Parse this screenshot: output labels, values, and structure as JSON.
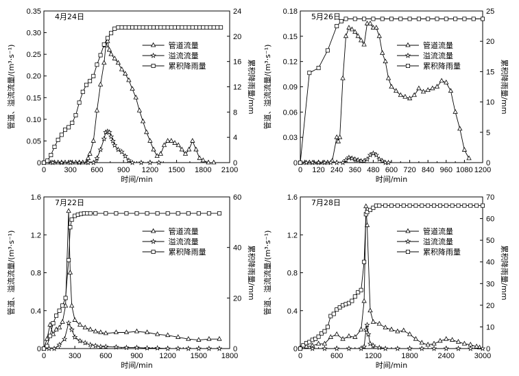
{
  "chart_data": [
    {
      "type": "line",
      "title": "4月24日",
      "xlabel": "时间/min",
      "ylabel": "管道、溢流流量/(m³·s⁻¹)",
      "y2label": "累积降雨量/mm",
      "xlim": [
        0,
        2100
      ],
      "ylim": [
        0,
        0.35
      ],
      "y2lim": [
        0,
        24
      ],
      "xticks": [
        "0",
        "300",
        "600",
        "900",
        "1200",
        "1500",
        "1800",
        "2100"
      ],
      "yticks": [
        "0",
        "0.05",
        "0.10",
        "0.15",
        "0.20",
        "0.25",
        "0.30",
        "0.35"
      ],
      "y2ticks": [
        "0",
        "4",
        "8",
        "12",
        "16",
        "20",
        "24"
      ],
      "legend": [
        "管道流量",
        "溢流流量",
        "累积降雨量"
      ],
      "series": [
        {
          "name": "管道流量",
          "marker": "triangle",
          "axis": "left",
          "x": [
            0,
            40,
            80,
            120,
            160,
            200,
            240,
            280,
            320,
            360,
            400,
            440,
            480,
            500,
            520,
            560,
            600,
            640,
            680,
            700,
            720,
            740,
            760,
            800,
            840,
            880,
            920,
            960,
            1000,
            1040,
            1080,
            1120,
            1160,
            1200,
            1240,
            1280,
            1320,
            1360,
            1400,
            1440,
            1480,
            1520,
            1560,
            1600,
            1640,
            1680,
            1720,
            1760,
            1800,
            1860,
            1920
          ],
          "y": [
            0,
            0,
            0,
            0,
            0,
            0,
            0,
            0,
            0,
            0,
            0,
            0,
            0,
            0.01,
            0.02,
            0.05,
            0.12,
            0.18,
            0.23,
            0.27,
            0.28,
            0.26,
            0.25,
            0.24,
            0.23,
            0.215,
            0.205,
            0.19,
            0.17,
            0.15,
            0.12,
            0.095,
            0.07,
            0.05,
            0.03,
            0.015,
            0.02,
            0.04,
            0.05,
            0.05,
            0.045,
            0.04,
            0.03,
            0.02,
            0.03,
            0.05,
            0.03,
            0.01,
            0.005,
            0,
            0
          ]
        },
        {
          "name": "溢流流量",
          "marker": "star",
          "axis": "left",
          "x": [
            0,
            100,
            200,
            300,
            400,
            500,
            560,
            600,
            640,
            680,
            700,
            720,
            740,
            760,
            780,
            800,
            840,
            880,
            920,
            960,
            1000,
            1100,
            1200,
            1300
          ],
          "y": [
            0,
            0,
            0,
            0,
            0,
            0,
            0,
            0.01,
            0.03,
            0.055,
            0.07,
            0.072,
            0.07,
            0.06,
            0.05,
            0.04,
            0.03,
            0.025,
            0.015,
            0.005,
            0,
            0,
            0,
            0
          ]
        },
        {
          "name": "累积降雨量",
          "marker": "square",
          "axis": "right",
          "x": [
            0,
            40,
            80,
            120,
            160,
            200,
            240,
            280,
            320,
            360,
            400,
            440,
            480,
            520,
            560,
            600,
            640,
            680,
            720,
            760,
            800,
            840,
            880,
            920,
            960,
            1000,
            1040,
            1080,
            1120,
            1160,
            1200,
            1240,
            1280,
            1320,
            1360,
            1400,
            1440,
            1480,
            1520,
            1560,
            1600,
            1640,
            1680,
            1720,
            1760,
            1800,
            1840,
            1880,
            1920,
            1960,
            2000
          ],
          "y": [
            0,
            0.3,
            1.2,
            2.5,
            3.6,
            4.4,
            5.2,
            5.6,
            6.3,
            7.5,
            9.5,
            11.2,
            12.3,
            12.9,
            13.7,
            15.5,
            17.0,
            18.7,
            19.7,
            20.5,
            21.2,
            21.4,
            21.4,
            21.4,
            21.4,
            21.4,
            21.4,
            21.4,
            21.4,
            21.4,
            21.4,
            21.4,
            21.4,
            21.4,
            21.4,
            21.4,
            21.4,
            21.4,
            21.4,
            21.4,
            21.4,
            21.4,
            21.4,
            21.4,
            21.4,
            21.4,
            21.4,
            21.4,
            21.4,
            21.4,
            21.4
          ]
        }
      ]
    },
    {
      "type": "line",
      "title": "5月26日",
      "xlabel": "时间/min",
      "ylabel": "管道、溢流流量/(m³·s⁻¹)",
      "y2label": "累积降雨量/mm",
      "xlim": [
        0,
        1200
      ],
      "ylim": [
        0,
        0.18
      ],
      "y2lim": [
        0,
        25
      ],
      "xticks": [
        "0",
        "120",
        "240",
        "360",
        "480",
        "600",
        "720",
        "840",
        "960",
        "1080",
        "1200"
      ],
      "yticks": [
        "0",
        "0.03",
        "0.06",
        "0.09",
        "0.12",
        "0.15",
        "0.18"
      ],
      "y2ticks": [
        "0",
        "5",
        "10",
        "15",
        "20",
        "25"
      ],
      "legend": [
        "管道流量",
        "溢流流量",
        "累积降雨量"
      ],
      "series": [
        {
          "name": "管道流量",
          "marker": "triangle",
          "axis": "left",
          "x": [
            0,
            30,
            60,
            90,
            120,
            150,
            180,
            210,
            240,
            250,
            260,
            280,
            300,
            320,
            340,
            360,
            380,
            400,
            420,
            440,
            460,
            480,
            500,
            520,
            540,
            560,
            580,
            600,
            630,
            660,
            690,
            720,
            750,
            780,
            810,
            840,
            870,
            900,
            930,
            960,
            990,
            1020,
            1050,
            1080,
            1110
          ],
          "y": [
            0,
            0,
            0,
            0,
            0,
            0,
            0,
            0.002,
            0.03,
            0.025,
            0.03,
            0.1,
            0.15,
            0.16,
            0.158,
            0.155,
            0.15,
            0.145,
            0.14,
            0.165,
            0.165,
            0.16,
            0.16,
            0.15,
            0.13,
            0.12,
            0.1,
            0.09,
            0.085,
            0.08,
            0.078,
            0.076,
            0.08,
            0.088,
            0.084,
            0.086,
            0.088,
            0.09,
            0.097,
            0.095,
            0.085,
            0.06,
            0.04,
            0.015,
            0.005
          ]
        },
        {
          "name": "溢流流量",
          "marker": "star",
          "axis": "left",
          "x": [
            0,
            40,
            80,
            120,
            160,
            200,
            240,
            280,
            300,
            320,
            340,
            360,
            380,
            400,
            420,
            440,
            460,
            480,
            500,
            520,
            540,
            560,
            580
          ],
          "y": [
            0,
            0,
            0,
            0,
            0,
            0,
            0,
            0,
            0.003,
            0.006,
            0.005,
            0.004,
            0.003,
            0.002,
            0.002,
            0.004,
            0.009,
            0.011,
            0.009,
            0.004,
            0.002,
            0,
            0
          ]
        },
        {
          "name": "累积降雨量",
          "marker": "square",
          "axis": "right",
          "x": [
            0,
            60,
            120,
            180,
            240,
            270,
            300,
            360,
            420,
            480,
            540,
            600,
            660,
            720,
            780,
            840,
            900,
            960,
            1020,
            1080,
            1140,
            1200
          ],
          "y": [
            0,
            14.8,
            15.6,
            18.5,
            22.5,
            23.3,
            23.7,
            23.7,
            23.7,
            23.7,
            23.7,
            23.7,
            23.7,
            23.7,
            23.7,
            23.7,
            23.7,
            23.7,
            23.7,
            23.7,
            23.7,
            23.7
          ]
        }
      ]
    },
    {
      "type": "line",
      "title": "7月22日",
      "xlabel": "时间/min",
      "ylabel": "管道、溢流流量/(m³·s⁻¹)",
      "y2label": "累积降雨量/mm",
      "xlim": [
        0,
        1800
      ],
      "ylim": [
        0,
        1.6
      ],
      "y2lim": [
        0,
        60
      ],
      "xticks": [
        "0",
        "300",
        "600",
        "900",
        "1200",
        "1500",
        "1800"
      ],
      "yticks": [
        "0",
        "0.4",
        "0.8",
        "1.2",
        "1.6"
      ],
      "y2ticks": [
        "0",
        "20",
        "40",
        "60"
      ],
      "legend": [
        "管道流量",
        "溢流流量",
        "累积降雨量"
      ],
      "series": [
        {
          "name": "管道流量",
          "marker": "triangle",
          "axis": "left",
          "x": [
            0,
            30,
            60,
            90,
            120,
            150,
            180,
            210,
            240,
            255,
            270,
            300,
            350,
            400,
            450,
            500,
            550,
            600,
            700,
            800,
            900,
            1000,
            1100,
            1200,
            1300,
            1400,
            1500,
            1600,
            1700
          ],
          "y": [
            0,
            0.1,
            0.25,
            0.15,
            0.2,
            0.22,
            0.28,
            0.45,
            1.45,
            0.8,
            0.45,
            0.3,
            0.25,
            0.22,
            0.2,
            0.18,
            0.17,
            0.16,
            0.17,
            0.17,
            0.18,
            0.17,
            0.15,
            0.14,
            0.12,
            0.1,
            0.09,
            0.1,
            0.1
          ]
        },
        {
          "name": "溢流流量",
          "marker": "star",
          "axis": "left",
          "x": [
            0,
            50,
            100,
            150,
            200,
            240,
            270,
            300,
            350,
            400,
            450,
            500,
            550,
            600,
            700,
            800,
            900,
            1000,
            1100,
            1200,
            1300,
            1400,
            1500,
            1600,
            1700
          ],
          "y": [
            0,
            0,
            0,
            0.04,
            0.1,
            0.27,
            0.2,
            0.12,
            0.08,
            0.06,
            0.04,
            0.03,
            0.02,
            0.02,
            0.015,
            0.01,
            0.01,
            0.005,
            0.005,
            0,
            0,
            0,
            0,
            0,
            0
          ]
        },
        {
          "name": "累积降雨量",
          "marker": "square",
          "axis": "right",
          "x": [
            0,
            30,
            60,
            90,
            120,
            150,
            180,
            210,
            240,
            255,
            270,
            300,
            330,
            360,
            390,
            420,
            450,
            500,
            600,
            700,
            800,
            900,
            1000,
            1100,
            1200,
            1300,
            1400,
            1500,
            1600,
            1700
          ],
          "y": [
            0,
            1,
            5,
            10,
            13,
            15,
            17,
            20,
            35,
            48,
            51,
            52.5,
            53,
            53.3,
            53.5,
            53.5,
            53.5,
            53.5,
            53.5,
            53.5,
            53.5,
            53.5,
            53.5,
            53.5,
            53.5,
            53.5,
            53.5,
            53.5,
            53.5,
            53.5
          ]
        }
      ]
    },
    {
      "type": "line",
      "title": "7月28日",
      "xlabel": "时间/min",
      "ylabel": "管道、溢流流量/(m³·s⁻¹)",
      "y2label": "累积降雨量/mm",
      "xlim": [
        0,
        3000
      ],
      "ylim": [
        0,
        1.6
      ],
      "y2lim": [
        0,
        70
      ],
      "xticks": [
        "0",
        "600",
        "1200",
        "1800",
        "2400",
        "3000"
      ],
      "yticks": [
        "0",
        "0.4",
        "0.8",
        "1.2",
        "1.6"
      ],
      "y2ticks": [
        "0",
        "10",
        "20",
        "30",
        "40",
        "50",
        "60",
        "70"
      ],
      "legend": [
        "管道流量",
        "溢流流量",
        "累积降雨量"
      ],
      "series": [
        {
          "name": "管道流量",
          "marker": "triangle",
          "axis": "left",
          "x": [
            0,
            100,
            200,
            300,
            400,
            500,
            600,
            700,
            800,
            900,
            1000,
            1050,
            1080,
            1100,
            1150,
            1200,
            1300,
            1400,
            1500,
            1600,
            1700,
            1800,
            1900,
            2000,
            2100,
            2200,
            2300,
            2400,
            2500,
            2600,
            2700,
            2800,
            2900,
            2950
          ],
          "y": [
            0.01,
            0.02,
            0.03,
            0.05,
            0.05,
            0.12,
            0.15,
            0.1,
            0.13,
            0.12,
            0.2,
            0.5,
            1.5,
            1.3,
            0.4,
            0.28,
            0.26,
            0.22,
            0.2,
            0.18,
            0.19,
            0.15,
            0.1,
            0.06,
            0.04,
            0.05,
            0.08,
            0.1,
            0.09,
            0.07,
            0.05,
            0.04,
            0.02,
            0.01
          ]
        },
        {
          "name": "溢流流量",
          "marker": "star",
          "axis": "left",
          "x": [
            0,
            200,
            400,
            600,
            800,
            1000,
            1050,
            1080,
            1100,
            1120,
            1150,
            1200,
            1300,
            1400,
            1600,
            1800,
            2000,
            2200,
            2400,
            2600,
            2800,
            3000
          ],
          "y": [
            0,
            0,
            0,
            0,
            0,
            0,
            0.02,
            0.2,
            0.25,
            0.15,
            0.05,
            0.03,
            0.01,
            0,
            0,
            0,
            0,
            0,
            0,
            0,
            0,
            0
          ]
        },
        {
          "name": "累积降雨量",
          "marker": "square",
          "axis": "right",
          "x": [
            0,
            50,
            100,
            150,
            200,
            250,
            300,
            350,
            400,
            450,
            500,
            550,
            600,
            650,
            700,
            750,
            800,
            850,
            900,
            950,
            1000,
            1050,
            1080,
            1100,
            1150,
            1200,
            1250,
            1300,
            1400,
            1500,
            1600,
            1700,
            1800,
            1900,
            2000,
            2100,
            2200,
            2300,
            2400,
            2500,
            2600,
            2700,
            2800,
            2900,
            3000
          ],
          "y": [
            0,
            1.5,
            2.5,
            3,
            4,
            4.5,
            5.5,
            7,
            8,
            10,
            15,
            16,
            18,
            19,
            20,
            20.5,
            21,
            22,
            24,
            26,
            27,
            40,
            62,
            63,
            64,
            65,
            66,
            66,
            66,
            66,
            66,
            66,
            66,
            66,
            66,
            66,
            66,
            66,
            66,
            66,
            66,
            66,
            66,
            66,
            66
          ]
        }
      ]
    }
  ]
}
